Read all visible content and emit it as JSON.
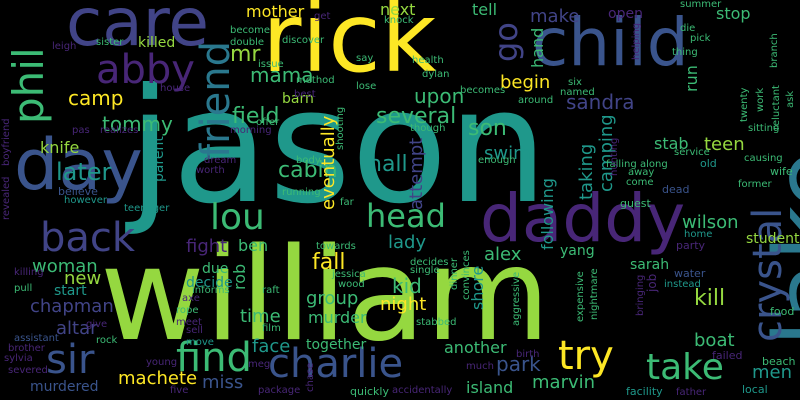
{
  "palette": {
    "background": "#000000",
    "yellow": "#fde725",
    "lime": "#95d840",
    "green": "#3cbb75",
    "teal": "#1f988b",
    "cyan": "#2a788e",
    "slate": "#3a548c",
    "indigo": "#414487",
    "purple": "#482677",
    "dark": "#440154"
  },
  "words": [
    {
      "text": "jason",
      "color": "teal"
    },
    {
      "text": "william",
      "color": "lime"
    },
    {
      "text": "lake",
      "color": "cyan"
    },
    {
      "text": "rick",
      "color": "yellow"
    },
    {
      "text": "child",
      "color": "slate"
    },
    {
      "text": "care",
      "color": "indigo"
    },
    {
      "text": "daddy",
      "color": "purple"
    },
    {
      "text": "day",
      "color": "slate"
    },
    {
      "text": "phil",
      "color": "green"
    },
    {
      "text": "abby",
      "color": "purple"
    },
    {
      "text": "friend",
      "color": "cyan"
    },
    {
      "text": "head",
      "color": "green"
    },
    {
      "text": "back",
      "color": "indigo"
    },
    {
      "text": "lou",
      "color": "green"
    },
    {
      "text": "crystal",
      "color": "slate"
    },
    {
      "text": "go",
      "color": "indigo"
    },
    {
      "text": "sir",
      "color": "slate"
    },
    {
      "text": "find",
      "color": "green"
    },
    {
      "text": "charlie",
      "color": "slate"
    },
    {
      "text": "take",
      "color": "green"
    },
    {
      "text": "try",
      "color": "yellow"
    },
    {
      "text": "kill",
      "color": "lime"
    },
    {
      "text": "mr",
      "color": "lime"
    },
    {
      "text": "mama",
      "color": "green"
    },
    {
      "text": "killed",
      "color": "lime"
    },
    {
      "text": "make",
      "color": "indigo"
    },
    {
      "text": "stop",
      "color": "green"
    },
    {
      "text": "open",
      "color": "purple"
    },
    {
      "text": "camp",
      "color": "yellow"
    },
    {
      "text": "tommy",
      "color": "green"
    },
    {
      "text": "knife",
      "color": "lime"
    },
    {
      "text": "later",
      "color": "teal"
    },
    {
      "text": "field",
      "color": "green"
    },
    {
      "text": "cabin",
      "color": "green"
    },
    {
      "text": "hall",
      "color": "teal"
    },
    {
      "text": "eventually",
      "color": "yellow"
    },
    {
      "text": "attempt",
      "color": "indigo"
    },
    {
      "text": "son",
      "color": "green"
    },
    {
      "text": "swim",
      "color": "teal"
    },
    {
      "text": "several",
      "color": "green"
    },
    {
      "text": "upon",
      "color": "green"
    },
    {
      "text": "barn",
      "color": "lime"
    },
    {
      "text": "mother",
      "color": "yellow"
    },
    {
      "text": "next",
      "color": "lime"
    },
    {
      "text": "tell",
      "color": "green"
    },
    {
      "text": "begin",
      "color": "yellow"
    },
    {
      "text": "sandra",
      "color": "indigo"
    },
    {
      "text": "run",
      "color": "green"
    },
    {
      "text": "hand",
      "color": "green"
    },
    {
      "text": "teen",
      "color": "lime"
    },
    {
      "text": "stab",
      "color": "green"
    },
    {
      "text": "camping",
      "color": "teal"
    },
    {
      "text": "taking",
      "color": "teal"
    },
    {
      "text": "following",
      "color": "teal"
    },
    {
      "text": "wilson",
      "color": "green"
    },
    {
      "text": "woman",
      "color": "green"
    },
    {
      "text": "fight",
      "color": "purple"
    },
    {
      "text": "ben",
      "color": "green"
    },
    {
      "text": "rob",
      "color": "green"
    },
    {
      "text": "lady",
      "color": "teal"
    },
    {
      "text": "alex",
      "color": "green"
    },
    {
      "text": "yang",
      "color": "green"
    },
    {
      "text": "sarah",
      "color": "green"
    },
    {
      "text": "new",
      "color": "lime"
    },
    {
      "text": "chapman",
      "color": "indigo"
    },
    {
      "text": "start",
      "color": "teal"
    },
    {
      "text": "altar",
      "color": "indigo"
    },
    {
      "text": "fall",
      "color": "yellow"
    },
    {
      "text": "kid",
      "color": "green"
    },
    {
      "text": "shore",
      "color": "teal"
    },
    {
      "text": "night",
      "color": "yellow"
    },
    {
      "text": "group",
      "color": "green"
    },
    {
      "text": "murder",
      "color": "green"
    },
    {
      "text": "time",
      "color": "green"
    },
    {
      "text": "face",
      "color": "teal"
    },
    {
      "text": "together",
      "color": "green"
    },
    {
      "text": "another",
      "color": "green"
    },
    {
      "text": "park",
      "color": "slate"
    },
    {
      "text": "boat",
      "color": "green"
    },
    {
      "text": "men",
      "color": "teal"
    },
    {
      "text": "marvin",
      "color": "green"
    },
    {
      "text": "island",
      "color": "green"
    },
    {
      "text": "machete",
      "color": "yellow"
    },
    {
      "text": "miss",
      "color": "slate"
    },
    {
      "text": "murdered",
      "color": "slate"
    },
    {
      "text": "parent",
      "color": "teal"
    },
    {
      "text": "due",
      "color": "green"
    },
    {
      "text": "decide",
      "color": "teal"
    },
    {
      "text": "student",
      "color": "lime"
    },
    {
      "text": "dead",
      "color": "slate"
    },
    {
      "text": "old",
      "color": "teal"
    },
    {
      "text": "wife",
      "color": "green"
    },
    {
      "text": "party",
      "color": "purple"
    },
    {
      "text": "home",
      "color": "teal"
    },
    {
      "text": "water",
      "color": "slate"
    },
    {
      "text": "job",
      "color": "purple"
    },
    {
      "text": "guest",
      "color": "green"
    },
    {
      "text": "instead",
      "color": "teal"
    },
    {
      "text": "food",
      "color": "green"
    },
    {
      "text": "beach",
      "color": "green"
    },
    {
      "text": "local",
      "color": "teal"
    },
    {
      "text": "failed",
      "color": "purple"
    },
    {
      "text": "facility",
      "color": "teal"
    },
    {
      "text": "father",
      "color": "purple"
    },
    {
      "text": "young",
      "color": "purple"
    },
    {
      "text": "five",
      "color": "purple"
    },
    {
      "text": "quickly",
      "color": "green"
    },
    {
      "text": "package",
      "color": "purple"
    },
    {
      "text": "chase",
      "color": "purple"
    },
    {
      "text": "accidentally",
      "color": "purple"
    },
    {
      "text": "much",
      "color": "purple"
    },
    {
      "text": "birth",
      "color": "purple"
    },
    {
      "text": "move",
      "color": "teal"
    },
    {
      "text": "rope",
      "color": "green"
    },
    {
      "text": "meet",
      "color": "purple"
    },
    {
      "text": "give",
      "color": "purple"
    },
    {
      "text": "pull",
      "color": "green"
    },
    {
      "text": "assistant",
      "color": "slate"
    },
    {
      "text": "rock",
      "color": "green"
    },
    {
      "text": "brother",
      "color": "purple"
    },
    {
      "text": "sylvia",
      "color": "purple"
    },
    {
      "text": "severed",
      "color": "purple"
    },
    {
      "text": "killing",
      "color": "purple"
    },
    {
      "text": "believe",
      "color": "slate"
    },
    {
      "text": "however",
      "color": "teal"
    },
    {
      "text": "teenager",
      "color": "teal"
    },
    {
      "text": "pas",
      "color": "purple"
    },
    {
      "text": "realizes",
      "color": "purple"
    },
    {
      "text": "house",
      "color": "purple"
    },
    {
      "text": "leigh",
      "color": "purple"
    },
    {
      "text": "sister",
      "color": "green"
    },
    {
      "text": "become",
      "color": "green"
    },
    {
      "text": "double",
      "color": "green"
    },
    {
      "text": "discover",
      "color": "green"
    },
    {
      "text": "say",
      "color": "green"
    },
    {
      "text": "knock",
      "color": "green"
    },
    {
      "text": "health",
      "color": "green"
    },
    {
      "text": "lose",
      "color": "green"
    },
    {
      "text": "becomes",
      "color": "green"
    },
    {
      "text": "six",
      "color": "green"
    },
    {
      "text": "named",
      "color": "green"
    },
    {
      "text": "around",
      "color": "green"
    },
    {
      "text": "helping",
      "color": "purple"
    },
    {
      "text": "summer",
      "color": "green"
    },
    {
      "text": "die",
      "color": "green"
    },
    {
      "text": "pick",
      "color": "green"
    },
    {
      "text": "thing",
      "color": "green"
    },
    {
      "text": "branch",
      "color": "green"
    },
    {
      "text": "twenty",
      "color": "green"
    },
    {
      "text": "work",
      "color": "green"
    },
    {
      "text": "reluctant",
      "color": "green"
    },
    {
      "text": "ask",
      "color": "green"
    },
    {
      "text": "sitting",
      "color": "green"
    },
    {
      "text": "former",
      "color": "green"
    },
    {
      "text": "causing",
      "color": "green"
    },
    {
      "text": "service",
      "color": "green"
    },
    {
      "text": "come",
      "color": "green"
    },
    {
      "text": "away",
      "color": "green"
    },
    {
      "text": "dylan",
      "color": "green"
    },
    {
      "text": "offer",
      "color": "green"
    },
    {
      "text": "morning",
      "color": "purple"
    },
    {
      "text": "method",
      "color": "green"
    },
    {
      "text": "issue",
      "color": "green"
    },
    {
      "text": "though",
      "color": "green"
    },
    {
      "text": "enough",
      "color": "green"
    },
    {
      "text": "shooting",
      "color": "green"
    },
    {
      "text": "dream",
      "color": "purple"
    },
    {
      "text": "worth",
      "color": "purple"
    },
    {
      "text": "body",
      "color": "green"
    },
    {
      "text": "running",
      "color": "green"
    },
    {
      "text": "far",
      "color": "green"
    },
    {
      "text": "towards",
      "color": "green"
    },
    {
      "text": "informs",
      "color": "green"
    },
    {
      "text": "jessica",
      "color": "green"
    },
    {
      "text": "wood",
      "color": "green"
    },
    {
      "text": "decides",
      "color": "green"
    },
    {
      "text": "convinces",
      "color": "green"
    },
    {
      "text": "single",
      "color": "green"
    },
    {
      "text": "raft",
      "color": "green"
    },
    {
      "text": "film",
      "color": "green"
    },
    {
      "text": "dinner",
      "color": "green"
    },
    {
      "text": "stabbed",
      "color": "green"
    },
    {
      "text": "aggressive",
      "color": "green"
    },
    {
      "text": "expensive",
      "color": "green"
    },
    {
      "text": "nightmare",
      "color": "green"
    },
    {
      "text": "bringing",
      "color": "purple"
    },
    {
      "text": "boyfriend",
      "color": "purple"
    },
    {
      "text": "revealed",
      "color": "purple"
    },
    {
      "text": "axe",
      "color": "purple"
    },
    {
      "text": "sell",
      "color": "purple"
    },
    {
      "text": "best",
      "color": "purple"
    },
    {
      "text": "falling",
      "color": "green"
    },
    {
      "text": "along",
      "color": "green"
    },
    {
      "text": "get",
      "color": "purple"
    },
    {
      "text": "hunting",
      "color": "purple"
    },
    {
      "text": "meg",
      "color": "purple"
    }
  ]
}
